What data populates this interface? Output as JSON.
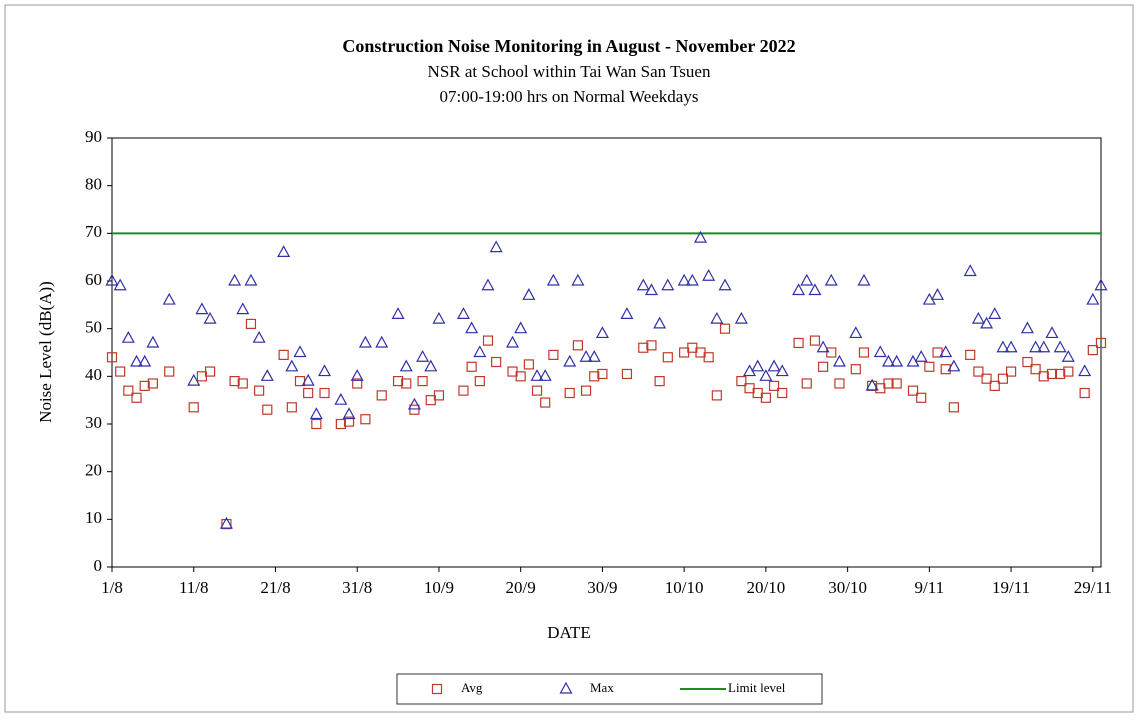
{
  "chart_data": {
    "type": "scatter",
    "title": "Construction  Noise Monitoring  in August - November 2022",
    "subtitle": [
      "NSR at School within Tai Wan San Tsuen",
      "07:00-19:00 hrs on Normal Weekdays"
    ],
    "xlabel": "DATE",
    "ylabel": "Noise Level (dB(A))",
    "xlim": [
      1,
      122
    ],
    "ylim": [
      0,
      90
    ],
    "yticks": [
      0,
      10,
      20,
      30,
      40,
      50,
      60,
      70,
      80,
      90
    ],
    "xticks": [
      {
        "value": 1,
        "label": "1/8"
      },
      {
        "value": 11,
        "label": "11/8"
      },
      {
        "value": 21,
        "label": "21/8"
      },
      {
        "value": 31,
        "label": "31/8"
      },
      {
        "value": 41,
        "label": "10/9"
      },
      {
        "value": 51,
        "label": "20/9"
      },
      {
        "value": 61,
        "label": "30/9"
      },
      {
        "value": 71,
        "label": "10/10"
      },
      {
        "value": 81,
        "label": "20/10"
      },
      {
        "value": 91,
        "label": "30/10"
      },
      {
        "value": 101,
        "label": "9/11"
      },
      {
        "value": 111,
        "label": "19/11"
      },
      {
        "value": 121,
        "label": "29/11"
      }
    ],
    "x": [
      1,
      2,
      3,
      4,
      5,
      6,
      8,
      11,
      12,
      13,
      15,
      16,
      17,
      18,
      19,
      20,
      22,
      23,
      24,
      25,
      26,
      27,
      29,
      30,
      31,
      32,
      34,
      36,
      37,
      38,
      39,
      40,
      41,
      44,
      45,
      46,
      47,
      48,
      50,
      51,
      52,
      53,
      54,
      55,
      57,
      58,
      59,
      60,
      61,
      64,
      66,
      67,
      68,
      69,
      71,
      72,
      73,
      74,
      75,
      76,
      78,
      79,
      80,
      81,
      82,
      83,
      85,
      86,
      87,
      88,
      89,
      90,
      92,
      93,
      94,
      95,
      96,
      97,
      99,
      100,
      101,
      102,
      103,
      104,
      106,
      107,
      108,
      109,
      110,
      111,
      113,
      114,
      115,
      116,
      117,
      118,
      120,
      121,
      122
    ],
    "series": [
      {
        "name": "Avg",
        "color": "#c0392b",
        "marker": "square",
        "values": [
          44,
          41,
          37,
          35.5,
          38,
          38.5,
          41,
          33.5,
          40,
          41,
          9,
          39,
          38.5,
          51,
          37,
          33,
          44.5,
          33.5,
          39,
          36.5,
          30,
          36.5,
          30,
          30.5,
          38.5,
          31,
          36,
          39,
          38.5,
          33,
          39,
          35,
          36,
          37,
          42,
          39,
          47.5,
          43,
          41,
          40,
          42.5,
          37,
          34.5,
          44.5,
          36.5,
          46.5,
          37,
          40,
          40.5,
          40.5,
          46,
          46.5,
          39,
          44,
          45,
          46,
          45,
          44,
          36,
          50,
          39,
          37.5,
          36.5,
          35.5,
          38,
          36.5,
          47,
          38.5,
          47.5,
          42,
          45,
          38.5,
          41.5,
          45,
          38,
          37.5,
          38.5,
          38.5,
          37,
          35.5,
          42,
          45,
          41.5,
          33.5,
          44.5,
          41,
          39.5,
          38,
          39.5,
          41,
          43,
          41.5,
          40,
          40.5,
          40.5,
          41,
          36.5,
          45.5,
          47
        ]
      },
      {
        "name": "Max",
        "color": "#3030a8",
        "marker": "triangle",
        "values": [
          60,
          59,
          48,
          43,
          43,
          47,
          56,
          39,
          54,
          52,
          9,
          60,
          54,
          60,
          48,
          40,
          66,
          42,
          45,
          39,
          32,
          41,
          35,
          32,
          40,
          47,
          47,
          53,
          42,
          34,
          44,
          42,
          52,
          53,
          50,
          45,
          59,
          67,
          47,
          50,
          57,
          40,
          40,
          60,
          43,
          60,
          44,
          44,
          49,
          53,
          59,
          58,
          51,
          59,
          60,
          60,
          69,
          61,
          52,
          59,
          52,
          41,
          42,
          40,
          42,
          41,
          58,
          60,
          58,
          46,
          60,
          43,
          49,
          60,
          38,
          45,
          43,
          43,
          43,
          44,
          56,
          57,
          45,
          42,
          62,
          52,
          51,
          53,
          46,
          46,
          50,
          46,
          46,
          49,
          46,
          44,
          41,
          56,
          59
        ]
      }
    ],
    "limit": {
      "name": "Limit level",
      "value": 70,
      "color": "#1e8c1e"
    }
  }
}
